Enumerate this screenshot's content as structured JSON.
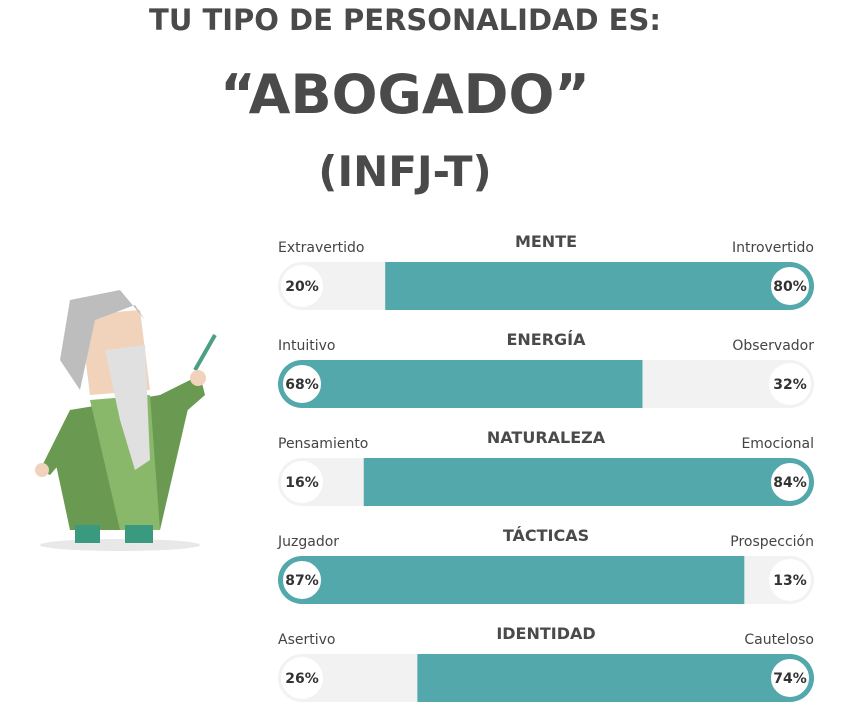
{
  "header": {
    "title": "TU TIPO DE PERSONALIDAD ES:",
    "type_name": "“ABOGADO”",
    "type_code": "(INFJ-T)"
  },
  "traits": [
    {
      "category": "MENTE",
      "left": "Extravertido",
      "right": "Introvertido",
      "left_value": 20,
      "left_label": "20%",
      "right_value": 80,
      "right_label": "80%"
    },
    {
      "category": "ENERGÍA",
      "left": "Intuitivo",
      "right": "Observador",
      "left_value": 68,
      "left_label": "68%",
      "right_value": 32,
      "right_label": "32%"
    },
    {
      "category": "NATURALEZA",
      "left": "Pensamiento",
      "right": "Emocional",
      "left_value": 16,
      "left_label": "16%",
      "right_value": 84,
      "right_label": "84%"
    },
    {
      "category": "TÁCTICAS",
      "left": "Juzgador",
      "right": "Prospección",
      "left_value": 87,
      "left_label": "87%",
      "right_value": 13,
      "right_label": "13%"
    },
    {
      "category": "IDENTIDAD",
      "left": "Asertivo",
      "right": "Cauteloso",
      "left_value": 26,
      "left_label": "26%",
      "right_value": 74,
      "right_label": "74%"
    }
  ]
}
